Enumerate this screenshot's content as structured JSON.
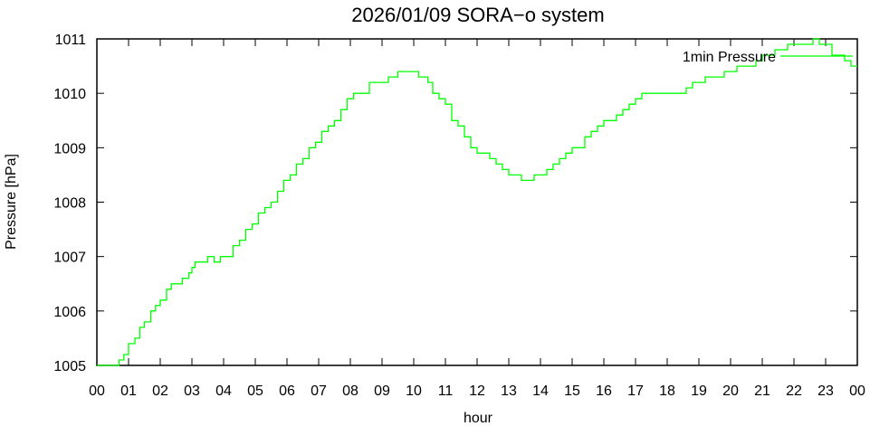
{
  "chart_data": {
    "type": "line",
    "title": "2026/01/09 SORA−o system",
    "xlabel": "hour",
    "ylabel": "Pressure [hPa]",
    "xlim": [
      0,
      24
    ],
    "ylim": [
      1005,
      1011
    ],
    "x_ticks": [
      0,
      1,
      2,
      3,
      4,
      5,
      6,
      7,
      8,
      9,
      10,
      11,
      12,
      13,
      14,
      15,
      16,
      17,
      18,
      19,
      20,
      21,
      22,
      23,
      24
    ],
    "x_tick_labels": [
      "00",
      "01",
      "02",
      "03",
      "04",
      "05",
      "06",
      "07",
      "08",
      "09",
      "10",
      "11",
      "12",
      "13",
      "14",
      "15",
      "16",
      "17",
      "18",
      "19",
      "20",
      "21",
      "22",
      "23",
      "00"
    ],
    "y_ticks": [
      1005,
      1006,
      1007,
      1008,
      1009,
      1010,
      1011
    ],
    "y_tick_labels": [
      "1005",
      "1006",
      "1007",
      "1008",
      "1009",
      "1010",
      "1011"
    ],
    "grid": false,
    "legend": "top-right",
    "series": [
      {
        "name": "1min Pressure",
        "color": "#00ff00",
        "step": 0.1,
        "x": [
          0.0,
          0.5,
          0.7,
          0.85,
          1.0,
          1.2,
          1.35,
          1.5,
          1.7,
          1.85,
          2.0,
          2.2,
          2.35,
          2.5,
          2.7,
          2.9,
          3.0,
          3.1,
          3.3,
          3.5,
          3.7,
          3.9,
          4.1,
          4.3,
          4.5,
          4.7,
          4.9,
          5.1,
          5.3,
          5.5,
          5.7,
          5.9,
          6.1,
          6.3,
          6.5,
          6.7,
          6.9,
          7.1,
          7.3,
          7.5,
          7.7,
          7.9,
          8.1,
          8.3,
          8.6,
          8.9,
          9.2,
          9.5,
          9.8,
          10.0,
          10.15,
          10.3,
          10.45,
          10.6,
          10.8,
          11.0,
          11.2,
          11.4,
          11.6,
          11.8,
          12.0,
          12.2,
          12.4,
          12.6,
          12.8,
          13.0,
          13.2,
          13.4,
          13.6,
          13.8,
          14.0,
          14.2,
          14.4,
          14.6,
          14.8,
          15.0,
          15.2,
          15.4,
          15.6,
          15.8,
          16.0,
          16.2,
          16.4,
          16.6,
          16.8,
          17.0,
          17.2,
          17.4,
          17.6,
          17.8,
          18.0,
          18.2,
          18.4,
          18.6,
          18.8,
          19.0,
          19.2,
          19.4,
          19.6,
          19.8,
          20.0,
          20.2,
          20.4,
          20.6,
          20.8,
          21.0,
          21.2,
          21.4,
          21.6,
          21.8,
          22.0,
          22.2,
          22.4,
          22.6,
          22.8,
          23.0,
          23.2,
          23.4,
          23.6,
          23.8,
          24.0
        ],
        "y": [
          1005.05,
          1005.05,
          1005.1,
          1005.2,
          1005.35,
          1005.5,
          1005.65,
          1005.8,
          1005.95,
          1006.1,
          1006.2,
          1006.35,
          1006.45,
          1006.55,
          1006.6,
          1006.7,
          1006.75,
          1006.85,
          1006.9,
          1006.95,
          1006.9,
          1006.95,
          1007.05,
          1007.15,
          1007.3,
          1007.45,
          1007.6,
          1007.75,
          1007.9,
          1008.05,
          1008.2,
          1008.35,
          1008.5,
          1008.65,
          1008.8,
          1008.95,
          1009.1,
          1009.25,
          1009.4,
          1009.55,
          1009.7,
          1009.85,
          1009.95,
          1010.05,
          1010.15,
          1010.2,
          1010.3,
          1010.35,
          1010.4,
          1010.35,
          1010.3,
          1010.25,
          1010.15,
          1010.05,
          1009.9,
          1009.75,
          1009.55,
          1009.35,
          1009.15,
          1009.0,
          1008.9,
          1008.9,
          1008.8,
          1008.7,
          1008.6,
          1008.5,
          1008.45,
          1008.4,
          1008.42,
          1008.5,
          1008.55,
          1008.6,
          1008.65,
          1008.75,
          1008.85,
          1008.95,
          1009.05,
          1009.15,
          1009.25,
          1009.35,
          1009.45,
          1009.55,
          1009.6,
          1009.7,
          1009.75,
          1009.85,
          1009.95,
          1010.0,
          1010.05,
          1010.05,
          1010.05,
          1010.0,
          1010.05,
          1010.1,
          1010.15,
          1010.2,
          1010.25,
          1010.3,
          1010.3,
          1010.35,
          1010.4,
          1010.45,
          1010.5,
          1010.55,
          1010.6,
          1010.65,
          1010.7,
          1010.75,
          1010.8,
          1010.85,
          1010.85,
          1010.9,
          1010.9,
          1010.95,
          1010.9,
          1010.85,
          1010.7,
          1010.65,
          1010.6,
          1010.55,
          1010.55
        ]
      }
    ]
  }
}
